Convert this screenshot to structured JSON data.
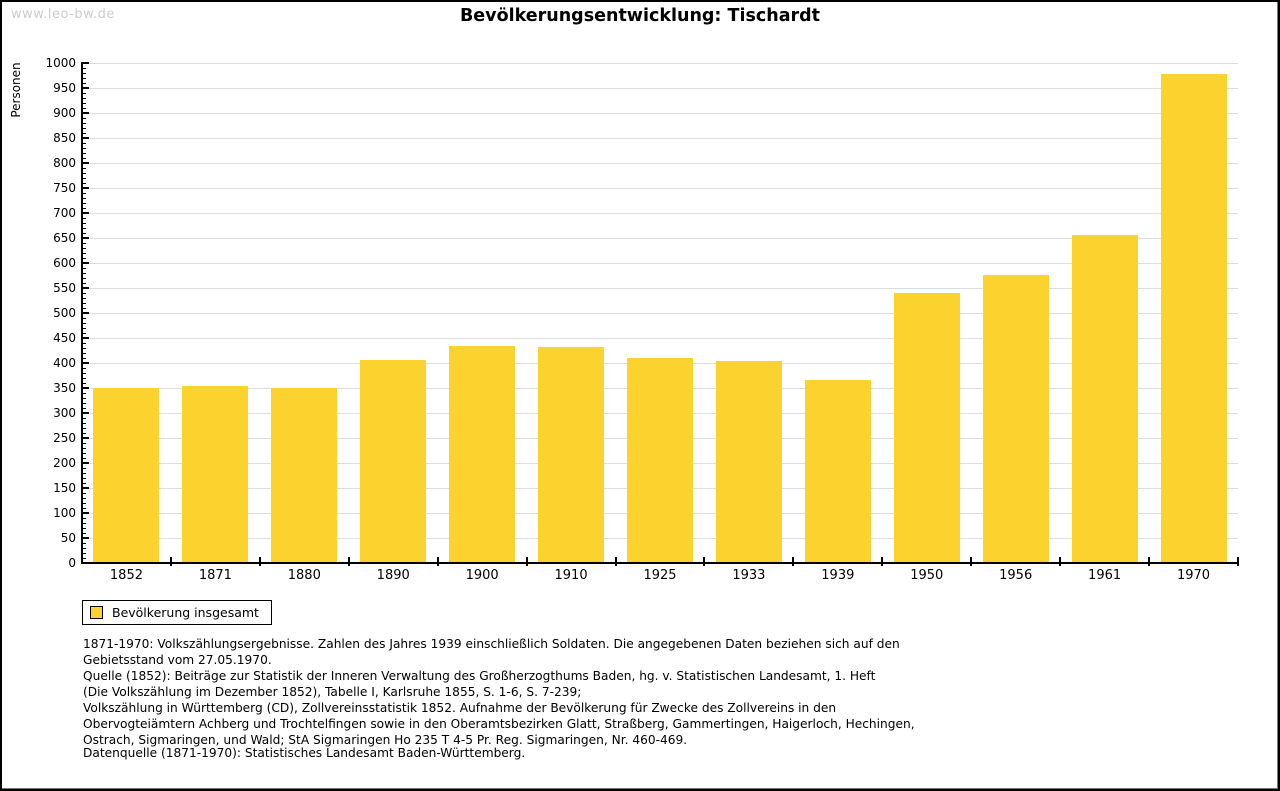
{
  "page": {
    "watermark": "www.leo-bw.de",
    "title": "Bevölkerungsentwicklung: Tischardt"
  },
  "chart_data": {
    "type": "bar",
    "title": "Bevölkerungsentwicklung: Tischardt",
    "xlabel": "",
    "ylabel": "Personen",
    "categories": [
      "1852",
      "1871",
      "1880",
      "1890",
      "1900",
      "1910",
      "1925",
      "1933",
      "1939",
      "1950",
      "1956",
      "1961",
      "1970"
    ],
    "values": [
      351,
      354,
      350,
      406,
      434,
      432,
      411,
      405,
      367,
      540,
      577,
      657,
      978
    ],
    "ylim": [
      0,
      1000
    ],
    "ytick_step": 50,
    "yminor_step": 10,
    "grid": true,
    "bar_color": "#fcd32e",
    "gridline_color": "#dddddd",
    "legend": {
      "label": "Bevölkerung insgesamt",
      "swatch_color": "#fcd32e",
      "position": "bottom-left"
    }
  },
  "footnotes": {
    "lines": [
      "1871-1970: Volkszählungsergebnisse. Zahlen des Jahres 1939 einschließlich Soldaten. Die angegebenen Daten beziehen sich auf den",
      "Gebietsstand vom 27.05.1970.",
      "Quelle (1852): Beiträge zur Statistik der Inneren Verwaltung des Großherzogthums Baden, hg. v. Statistischen Landesamt, 1. Heft",
      "(Die Volkszählung im Dezember 1852), Tabelle I, Karlsruhe 1855, S. 1-6, S. 7-239;",
      "Volkszählung in Württemberg (CD), Zollvereinsstatistik 1852. Aufnahme der Bevölkerung für Zwecke des Zollvereins in den",
      "Obervogteiämtern Achberg und Trochtelfingen sowie in den Oberamtsbezirken Glatt, Straßberg, Gammertingen, Haigerloch, Hechingen,",
      "Ostrach, Sigmaringen, und Wald; StA Sigmaringen Ho 235 T 4-5 Pr. Reg. Sigmaringen, Nr. 460-469."
    ],
    "datasource": "Datenquelle (1871-1970): Statistisches Landesamt Baden-Württemberg."
  }
}
